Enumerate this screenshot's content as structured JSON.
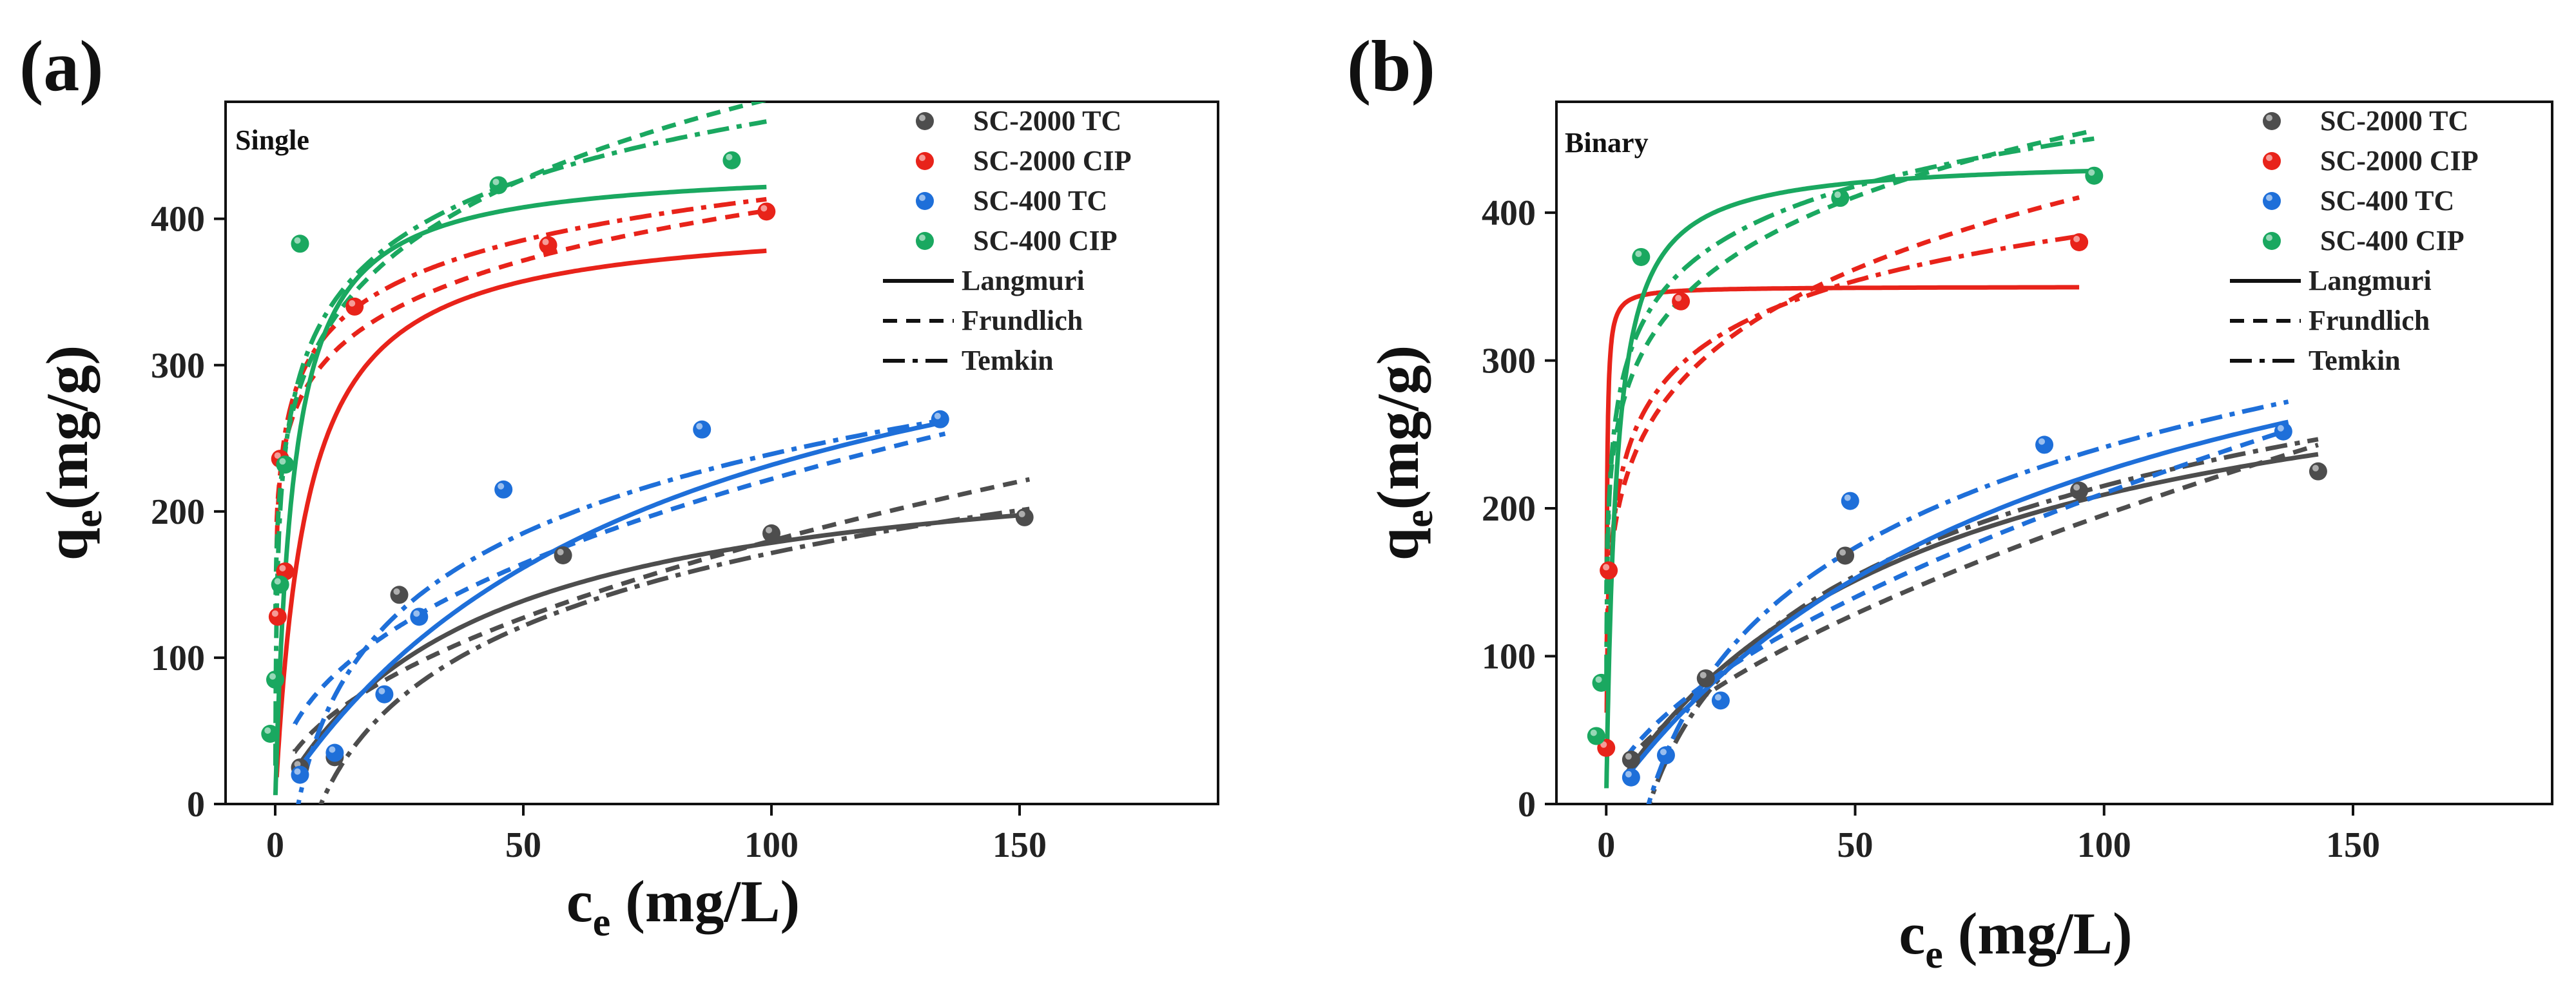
{
  "figure": {
    "colors": {
      "SC-2000 TC": "#4d4d4d",
      "SC-2000 CIP": "#e8231a",
      "SC-400 TC": "#1e6fd9",
      "SC-400 CIP": "#1aa860"
    }
  },
  "chart_data": [
    {
      "panel_label": "(a)",
      "inset_label": "Single",
      "type": "scatter",
      "xlabel": "c_e (mg/L)",
      "ylabel": "q_e(mg/g)",
      "xlabel_main": "c",
      "xlabel_sub": "e",
      "xlabel_unit": " (mg/L)",
      "ylabel_main": "q",
      "ylabel_sub": "e",
      "ylabel_unit": "(mg/g)",
      "xlim": [
        -10,
        190
      ],
      "ylim": [
        0,
        480
      ],
      "xticks": [
        "0",
        "50",
        "100",
        "150"
      ],
      "yticks": [
        "0",
        "100",
        "200",
        "300",
        "400"
      ],
      "xtick_values": [
        0,
        50,
        100,
        150
      ],
      "ytick_values": [
        0,
        100,
        200,
        300,
        400
      ],
      "legend": [
        "SC-2000 TC",
        "SC-2000 CIP",
        "SC-400  TC",
        "SC-400  CIP",
        "Langmuri",
        "Frundlich",
        "Temkin"
      ],
      "series": [
        {
          "name": "SC-2000 TC",
          "points": [
            [
              5,
              25
            ],
            [
              12,
              32
            ],
            [
              25,
              143
            ],
            [
              58,
              170
            ],
            [
              100,
              185
            ],
            [
              151,
              196
            ]
          ],
          "langmuir": {
            "qm": 250,
            "kl": 0.025
          },
          "freundlich": {
            "kf": 18,
            "n": 2.0
          },
          "temkin": {
            "a": -160,
            "b": 72
          },
          "x_start": 4,
          "x_end": 152
        },
        {
          "name": "SC-2000 CIP",
          "points": [
            [
              0.5,
              128
            ],
            [
              1,
              236
            ],
            [
              2,
              159
            ],
            [
              16,
              340
            ],
            [
              55,
              382
            ],
            [
              99,
              405
            ]
          ],
          "langmuir": {
            "qm": 402,
            "kl": 0.16
          },
          "freundlich": {
            "kf": 225,
            "n": 7.8
          },
          "temkin": {
            "a": 225,
            "b": 41
          },
          "x_start": 0.3,
          "x_end": 99
        },
        {
          "name": "SC-400 TC",
          "points": [
            [
              5,
              20
            ],
            [
              12,
              35
            ],
            [
              22,
              75
            ],
            [
              29,
              128
            ],
            [
              46,
              215
            ],
            [
              86,
              256
            ],
            [
              134,
              263
            ]
          ],
          "langmuir": {
            "qm": 410,
            "kl": 0.013
          },
          "freundlich": {
            "kf": 30,
            "n": 2.3
          },
          "temkin": {
            "a": -120,
            "b": 78
          },
          "x_start": 4,
          "x_end": 135
        },
        {
          "name": "SC-400 CIP",
          "points": [
            [
              -1,
              48
            ],
            [
              0,
              85
            ],
            [
              1,
              150
            ],
            [
              2,
              232
            ],
            [
              5,
              383
            ],
            [
              45,
              423
            ],
            [
              92,
              440
            ]
          ],
          "langmuir": {
            "qm": 437,
            "kl": 0.28
          },
          "freundlich": {
            "kf": 215,
            "n": 5.7
          },
          "temkin": {
            "a": 200,
            "b": 58
          },
          "x_start": -0.5,
          "x_end": 99
        }
      ]
    },
    {
      "panel_label": "(b)",
      "inset_label": "Binary",
      "type": "scatter",
      "xlabel": "c_e (mg/L)",
      "ylabel": "q_e(mg/g)",
      "xlabel_main": "c",
      "xlabel_sub": "e",
      "xlabel_unit": " (mg/L)",
      "ylabel_main": "q",
      "ylabel_sub": "e",
      "ylabel_unit": "(mg/g)",
      "xlim": [
        -10,
        190
      ],
      "ylim": [
        0,
        475
      ],
      "xticks": [
        "0",
        "50",
        "100",
        "150"
      ],
      "yticks": [
        "0",
        "100",
        "200",
        "300",
        "400"
      ],
      "xtick_values": [
        0,
        50,
        100,
        150
      ],
      "ytick_values": [
        0,
        100,
        200,
        300,
        400
      ],
      "legend": [
        "SC-2000  TC",
        "SC-2000 CIP",
        "SC-400   TC",
        "SC-400   CIP",
        "Langmuri",
        "Frundlich",
        "Temkin"
      ],
      "series": [
        {
          "name": "SC-2000 TC",
          "points": [
            [
              5,
              30
            ],
            [
              20,
              85
            ],
            [
              48,
              168
            ],
            [
              95,
              212
            ],
            [
              143,
              225
            ]
          ],
          "langmuir": {
            "qm": 340,
            "kl": 0.016
          },
          "freundlich": {
            "kf": 12,
            "n": 1.65
          },
          "temkin": {
            "a": -190,
            "b": 88
          },
          "x_start": 4,
          "x_end": 143
        },
        {
          "name": "SC-2000 CIP",
          "points": [
            [
              0,
              38
            ],
            [
              0.5,
              158
            ],
            [
              15,
              340
            ],
            [
              95,
              380
            ]
          ],
          "langmuir": {
            "qm": 350,
            "kl": 8.0
          },
          "freundlich": {
            "kf": 168,
            "n": 5.1
          },
          "temkin": {
            "a": 170,
            "b": 47
          },
          "x_start": 0.1,
          "x_end": 95
        },
        {
          "name": "SC-400 TC",
          "points": [
            [
              5,
              18
            ],
            [
              12,
              33
            ],
            [
              23,
              70
            ],
            [
              49,
              205
            ],
            [
              88,
              243
            ],
            [
              136,
              252
            ]
          ],
          "langmuir": {
            "qm": 430,
            "kl": 0.011
          },
          "freundlich": {
            "kf": 14,
            "n": 1.7
          },
          "temkin": {
            "a": -210,
            "b": 98
          },
          "x_start": 4,
          "x_end": 137
        },
        {
          "name": "SC-400 CIP",
          "points": [
            [
              -2,
              46
            ],
            [
              -1,
              82
            ],
            [
              7,
              370
            ],
            [
              47,
              410
            ],
            [
              98,
              425
            ]
          ],
          "langmuir": {
            "qm": 437,
            "kl": 0.5
          },
          "freundlich": {
            "kf": 225,
            "n": 6.5
          },
          "temkin": {
            "a": 230,
            "b": 48
          },
          "x_start": -1,
          "x_end": 98
        }
      ]
    }
  ]
}
